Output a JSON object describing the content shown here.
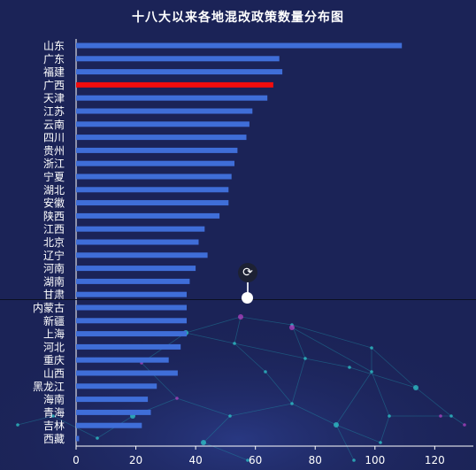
{
  "chart_data": {
    "type": "bar",
    "orientation": "horizontal",
    "title": "十八大以来各地混改政策数量分布图",
    "xlabel": "",
    "ylabel": "",
    "xlim": [
      0,
      130
    ],
    "xticks": [
      0,
      20,
      40,
      60,
      80,
      100,
      120
    ],
    "categories": [
      "山东",
      "广东",
      "福建",
      "广西",
      "天津",
      "江苏",
      "云南",
      "四川",
      "贵州",
      "浙江",
      "宁夏",
      "湖北",
      "安徽",
      "陕西",
      "江西",
      "北京",
      "辽宁",
      "河南",
      "湖南",
      "甘肃",
      "内蒙古",
      "新疆",
      "上海",
      "河北",
      "重庆",
      "山西",
      "黑龙江",
      "海南",
      "青海",
      "吉林",
      "西藏"
    ],
    "values": [
      109,
      68,
      69,
      66,
      64,
      59,
      58,
      57,
      54,
      53,
      52,
      51,
      51,
      48,
      43,
      41,
      44,
      40,
      38,
      37,
      37,
      37,
      37,
      35,
      31,
      34,
      27,
      24,
      25,
      22,
      1
    ],
    "highlight": "广西",
    "colors": {
      "bar": "#3f6ed8",
      "bar_highlight": "#f20d0d",
      "label": "#ffffff",
      "axis": "#ffffff",
      "background": "#1b2357"
    },
    "grid": false
  },
  "controls": {
    "rotate_icon": "⟳"
  }
}
